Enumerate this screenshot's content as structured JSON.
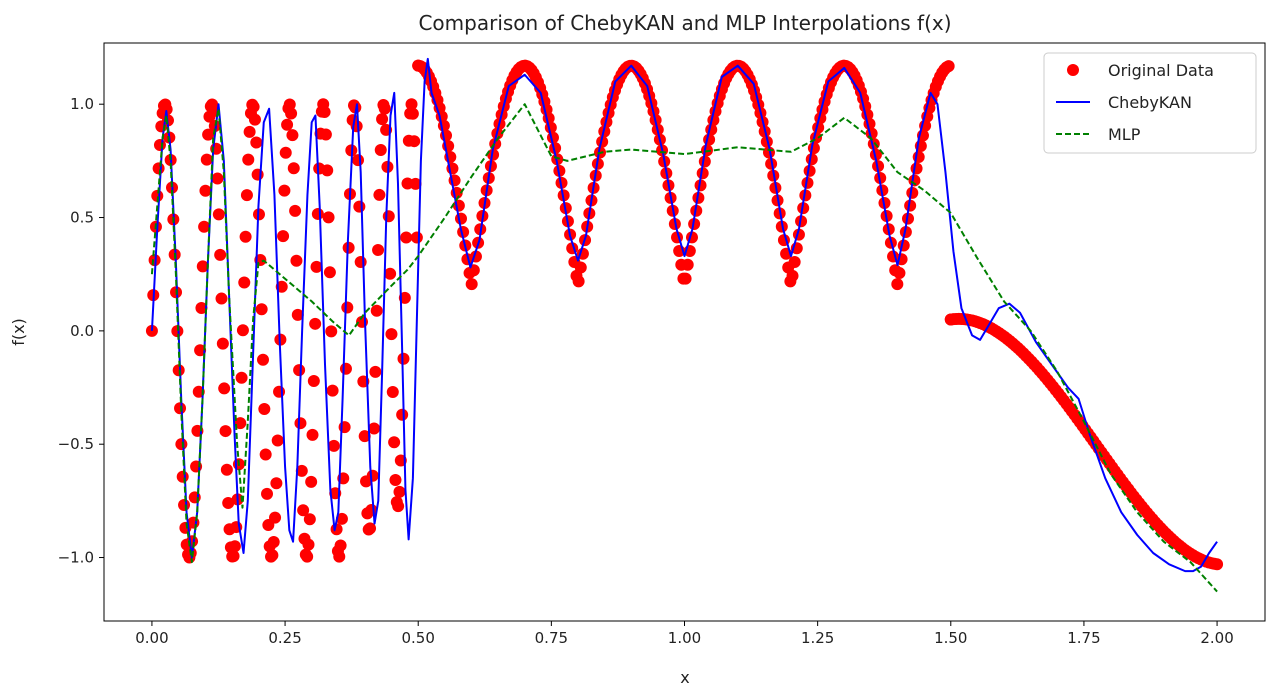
{
  "chart_data": {
    "type": "line",
    "title": "Comparison of ChebyKAN and MLP Interpolations f(x)",
    "xlabel": "x",
    "ylabel": "f(x)",
    "xlim": [
      -0.09,
      2.09
    ],
    "ylim": [
      -1.28,
      1.27
    ],
    "grid": false,
    "legend_position": "top-right",
    "x_ticks": [
      0.0,
      0.25,
      0.5,
      0.75,
      1.0,
      1.25,
      1.5,
      1.75,
      2.0
    ],
    "x_tick_labels": [
      "0.00",
      "0.25",
      "0.50",
      "0.75",
      "1.00",
      "1.25",
      "1.50",
      "1.75",
      "2.00"
    ],
    "y_ticks": [
      -1.0,
      -0.5,
      0.0,
      0.5,
      1.0
    ],
    "y_tick_labels": [
      "−1.0",
      "−0.5",
      "0.0",
      "0.5",
      "1.0"
    ],
    "series": [
      {
        "name": "Original Data",
        "style": "markers",
        "color": "#ff0000",
        "function": "piecewise: x<0.5 -> sin(20*pi*x + 10*pi*x^2); 0.5<=x<1.5 -> 0.7*|sin(5*pi*x)|^0.5*... approx 0.2..1.17 oscillation period 0.2; x>=1.5 -> -0.53*(x-1.5)... cubic decay to -1.0",
        "segments": [
          {
            "x_range": [
              0.0,
              0.5
            ],
            "samples": 200,
            "description": "chirp oscillation between -1 and 1"
          },
          {
            "x_range": [
              0.5,
              1.5
            ],
            "samples": 250,
            "description": "oscillation between ~0.2 and ~1.17 with period 0.2"
          },
          {
            "x_range": [
              1.5,
              2.0
            ],
            "samples": 100,
            "description": "smooth decrease from ~0.05 to ~-1.0"
          }
        ]
      },
      {
        "name": "ChebyKAN",
        "style": "solid",
        "color": "#0000ff",
        "points": [
          [
            0.0,
            0.0
          ],
          [
            0.01,
            0.45
          ],
          [
            0.02,
            0.85
          ],
          [
            0.027,
            0.97
          ],
          [
            0.035,
            0.8
          ],
          [
            0.045,
            0.3
          ],
          [
            0.055,
            -0.3
          ],
          [
            0.065,
            -0.8
          ],
          [
            0.075,
            -1.0
          ],
          [
            0.085,
            -0.8
          ],
          [
            0.095,
            -0.3
          ],
          [
            0.105,
            0.3
          ],
          [
            0.115,
            0.8
          ],
          [
            0.125,
            1.0
          ],
          [
            0.135,
            0.75
          ],
          [
            0.145,
            0.15
          ],
          [
            0.155,
            -0.45
          ],
          [
            0.163,
            -0.85
          ],
          [
            0.172,
            -0.98
          ],
          [
            0.18,
            -0.75
          ],
          [
            0.19,
            -0.1
          ],
          [
            0.2,
            0.55
          ],
          [
            0.21,
            0.92
          ],
          [
            0.22,
            0.98
          ],
          [
            0.23,
            0.6
          ],
          [
            0.24,
            -0.05
          ],
          [
            0.25,
            -0.6
          ],
          [
            0.258,
            -0.88
          ],
          [
            0.265,
            -0.93
          ],
          [
            0.273,
            -0.6
          ],
          [
            0.282,
            0.0
          ],
          [
            0.292,
            0.6
          ],
          [
            0.3,
            0.92
          ],
          [
            0.307,
            0.95
          ],
          [
            0.315,
            0.55
          ],
          [
            0.325,
            -0.15
          ],
          [
            0.335,
            -0.7
          ],
          [
            0.343,
            -0.88
          ],
          [
            0.35,
            -0.8
          ],
          [
            0.358,
            -0.3
          ],
          [
            0.368,
            0.4
          ],
          [
            0.378,
            0.9
          ],
          [
            0.385,
            1.0
          ],
          [
            0.392,
            0.7
          ],
          [
            0.4,
            0.05
          ],
          [
            0.41,
            -0.6
          ],
          [
            0.418,
            -0.85
          ],
          [
            0.425,
            -0.75
          ],
          [
            0.432,
            -0.2
          ],
          [
            0.44,
            0.5
          ],
          [
            0.448,
            0.95
          ],
          [
            0.455,
            1.05
          ],
          [
            0.462,
            0.65
          ],
          [
            0.47,
            -0.1
          ],
          [
            0.476,
            -0.7
          ],
          [
            0.482,
            -0.92
          ],
          [
            0.49,
            -0.65
          ],
          [
            0.498,
            0.1
          ],
          [
            0.505,
            0.75
          ],
          [
            0.512,
            1.1
          ],
          [
            0.518,
            1.2
          ],
          [
            0.525,
            1.05
          ],
          [
            0.54,
            0.95
          ],
          [
            0.56,
            0.7
          ],
          [
            0.58,
            0.45
          ],
          [
            0.598,
            0.28
          ],
          [
            0.615,
            0.4
          ],
          [
            0.64,
            0.8
          ],
          [
            0.67,
            1.08
          ],
          [
            0.7,
            1.13
          ],
          [
            0.73,
            1.05
          ],
          [
            0.76,
            0.75
          ],
          [
            0.785,
            0.42
          ],
          [
            0.8,
            0.31
          ],
          [
            0.815,
            0.42
          ],
          [
            0.84,
            0.8
          ],
          [
            0.87,
            1.1
          ],
          [
            0.9,
            1.17
          ],
          [
            0.93,
            1.08
          ],
          [
            0.96,
            0.78
          ],
          [
            0.985,
            0.45
          ],
          [
            1.0,
            0.33
          ],
          [
            1.015,
            0.45
          ],
          [
            1.04,
            0.82
          ],
          [
            1.07,
            1.12
          ],
          [
            1.1,
            1.17
          ],
          [
            1.13,
            1.09
          ],
          [
            1.16,
            0.8
          ],
          [
            1.185,
            0.45
          ],
          [
            1.2,
            0.33
          ],
          [
            1.215,
            0.45
          ],
          [
            1.24,
            0.82
          ],
          [
            1.27,
            1.1
          ],
          [
            1.3,
            1.16
          ],
          [
            1.33,
            1.05
          ],
          [
            1.36,
            0.75
          ],
          [
            1.385,
            0.42
          ],
          [
            1.4,
            0.29
          ],
          [
            1.415,
            0.45
          ],
          [
            1.44,
            0.85
          ],
          [
            1.462,
            1.05
          ],
          [
            1.475,
            1.0
          ],
          [
            1.49,
            0.7
          ],
          [
            1.505,
            0.35
          ],
          [
            1.52,
            0.1
          ],
          [
            1.54,
            -0.02
          ],
          [
            1.555,
            -0.04
          ],
          [
            1.57,
            0.02
          ],
          [
            1.59,
            0.1
          ],
          [
            1.61,
            0.12
          ],
          [
            1.63,
            0.08
          ],
          [
            1.66,
            -0.05
          ],
          [
            1.69,
            -0.15
          ],
          [
            1.72,
            -0.25
          ],
          [
            1.74,
            -0.3
          ],
          [
            1.76,
            -0.45
          ],
          [
            1.79,
            -0.65
          ],
          [
            1.82,
            -0.8
          ],
          [
            1.85,
            -0.9
          ],
          [
            1.88,
            -0.98
          ],
          [
            1.91,
            -1.03
          ],
          [
            1.94,
            -1.06
          ],
          [
            1.955,
            -1.06
          ],
          [
            1.97,
            -1.04
          ],
          [
            1.985,
            -0.98
          ],
          [
            2.0,
            -0.93
          ]
        ]
      },
      {
        "name": "MLP",
        "style": "dashed",
        "color": "#008000",
        "points": [
          [
            0.0,
            0.25
          ],
          [
            0.01,
            0.55
          ],
          [
            0.02,
            0.85
          ],
          [
            0.027,
            0.95
          ],
          [
            0.035,
            0.75
          ],
          [
            0.045,
            0.25
          ],
          [
            0.055,
            -0.35
          ],
          [
            0.065,
            -0.85
          ],
          [
            0.075,
            -1.02
          ],
          [
            0.085,
            -0.8
          ],
          [
            0.095,
            -0.3
          ],
          [
            0.105,
            0.3
          ],
          [
            0.115,
            0.85
          ],
          [
            0.125,
            0.98
          ],
          [
            0.135,
            0.7
          ],
          [
            0.145,
            0.15
          ],
          [
            0.16,
            -0.5
          ],
          [
            0.17,
            -0.78
          ],
          [
            0.18,
            -0.4
          ],
          [
            0.19,
            0.05
          ],
          [
            0.2,
            0.3
          ],
          [
            0.21,
            0.31
          ],
          [
            0.25,
            0.23
          ],
          [
            0.3,
            0.13
          ],
          [
            0.34,
            0.04
          ],
          [
            0.37,
            -0.02
          ],
          [
            0.4,
            0.08
          ],
          [
            0.45,
            0.2
          ],
          [
            0.48,
            0.27
          ],
          [
            0.5,
            0.33
          ],
          [
            0.55,
            0.5
          ],
          [
            0.6,
            0.68
          ],
          [
            0.65,
            0.85
          ],
          [
            0.7,
            1.0
          ],
          [
            0.75,
            0.77
          ],
          [
            0.78,
            0.75
          ],
          [
            0.85,
            0.79
          ],
          [
            0.9,
            0.8
          ],
          [
            1.0,
            0.78
          ],
          [
            1.1,
            0.81
          ],
          [
            1.2,
            0.79
          ],
          [
            1.25,
            0.85
          ],
          [
            1.3,
            0.94
          ],
          [
            1.35,
            0.85
          ],
          [
            1.4,
            0.7
          ],
          [
            1.45,
            0.62
          ],
          [
            1.5,
            0.52
          ],
          [
            1.55,
            0.32
          ],
          [
            1.6,
            0.13
          ],
          [
            1.65,
            0.0
          ],
          [
            1.7,
            -0.18
          ],
          [
            1.75,
            -0.4
          ],
          [
            1.8,
            -0.63
          ],
          [
            1.85,
            -0.8
          ],
          [
            1.9,
            -0.93
          ],
          [
            1.95,
            -1.02
          ],
          [
            2.0,
            -1.15
          ]
        ]
      }
    ]
  },
  "legend": {
    "items": [
      {
        "label": "Original Data",
        "marker": "circle",
        "color": "#ff0000"
      },
      {
        "label": "ChebyKAN",
        "marker": "solid-line",
        "color": "#0000ff"
      },
      {
        "label": "MLP",
        "marker": "dashed-line",
        "color": "#008000"
      }
    ]
  }
}
